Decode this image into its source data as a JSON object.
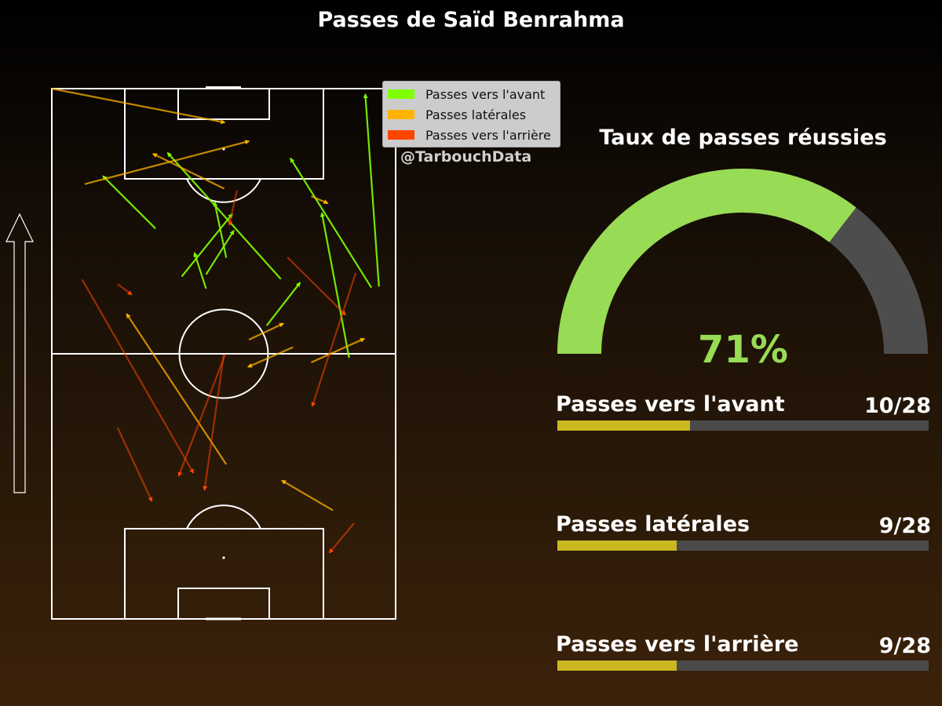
{
  "title": "Passes de Saïd Benrahma",
  "watermark": "@TarbouchData",
  "gauge": {
    "title": "Taux de passes réussies",
    "value_label": "71%",
    "value": 0.71,
    "fill_color": "#98db55",
    "track_color": "#4d4d4d"
  },
  "legend": [
    {
      "label": "Passes vers l'avant",
      "color": "#7fff00"
    },
    {
      "label": "Passes latérales",
      "color": "#ffb300"
    },
    {
      "label": "Passes vers l'arrière",
      "color": "#ff4500"
    }
  ],
  "stats": [
    {
      "label": "Passes vers l'avant",
      "count_label": "10/28",
      "value": 10,
      "total": 28
    },
    {
      "label": "Passes latérales",
      "count_label": "9/28",
      "value": 9,
      "total": 28
    },
    {
      "label": "Passes vers l'arrière",
      "count_label": "9/28",
      "value": 9,
      "total": 28
    }
  ],
  "bar_fill_color": "#cbb820",
  "bar_track_color": "#4a4a4a",
  "pitch_line_color": "#ffffff",
  "attack_direction": "up",
  "chart_data": {
    "type": "scatter",
    "description_units": "pitch coordinates: x = width 0-68 (left to right), y = length 0-105 (own goal at 0, attacking upward)",
    "xlim": [
      0,
      68
    ],
    "ylim": [
      0,
      105
    ],
    "series": [
      {
        "name": "Passes vers l'avant",
        "color": "#7fff00",
        "passes": [
          {
            "start": [
              64.7,
              65.8
            ],
            "end": [
              62.0,
              103.9
            ]
          },
          {
            "start": [
              58.8,
              51.7
            ],
            "end": [
              53.4,
              80.4
            ]
          },
          {
            "start": [
              63.2,
              65.6
            ],
            "end": [
              47.2,
              91.2
            ]
          },
          {
            "start": [
              45.3,
              67.3
            ],
            "end": [
              22.9,
              92.3
            ]
          },
          {
            "start": [
              20.5,
              77.3
            ],
            "end": [
              10.1,
              87.7
            ]
          },
          {
            "start": [
              30.5,
              68.2
            ],
            "end": [
              36.0,
              76.9
            ]
          },
          {
            "start": [
              25.7,
              67.8
            ],
            "end": [
              35.7,
              80.2
            ]
          },
          {
            "start": [
              34.5,
              71.5
            ],
            "end": [
              32.2,
              82.5
            ]
          },
          {
            "start": [
              30.5,
              65.4
            ],
            "end": [
              28.2,
              72.5
            ]
          },
          {
            "start": [
              42.5,
              58.1
            ],
            "end": [
              49.1,
              66.6
            ]
          }
        ]
      },
      {
        "name": "Passes latérales",
        "color": "#ffb300",
        "passes": [
          {
            "start": [
              0.0,
              105.0
            ],
            "end": [
              34.2,
              98.3
            ]
          },
          {
            "start": [
              6.5,
              86.1
            ],
            "end": [
              39.0,
              94.6
            ]
          },
          {
            "start": [
              51.3,
              83.7
            ],
            "end": [
              54.6,
              82.3
            ]
          },
          {
            "start": [
              51.3,
              50.8
            ],
            "end": [
              61.8,
              55.5
            ]
          },
          {
            "start": [
              39.0,
              55.3
            ],
            "end": [
              45.8,
              58.5
            ]
          },
          {
            "start": [
              47.7,
              53.8
            ],
            "end": [
              38.8,
              49.9
            ]
          },
          {
            "start": [
              34.1,
              85.2
            ],
            "end": [
              20.0,
              92.1
            ]
          },
          {
            "start": [
              34.5,
              30.6
            ],
            "end": [
              14.8,
              60.4
            ]
          },
          {
            "start": [
              55.6,
              21.5
            ],
            "end": [
              45.5,
              27.4
            ]
          }
        ]
      },
      {
        "name": "Passes vers l'arrière",
        "color": "#ff4500",
        "passes": [
          {
            "start": [
              6.0,
              67.2
            ],
            "end": [
              28.0,
              28.9
            ]
          },
          {
            "start": [
              13.0,
              66.3
            ],
            "end": [
              15.8,
              64.2
            ]
          },
          {
            "start": [
              46.6,
              71.6
            ],
            "end": [
              58.1,
              60.2
            ]
          },
          {
            "start": [
              60.1,
              68.5
            ],
            "end": [
              51.5,
              42.1
            ]
          },
          {
            "start": [
              34.3,
              52.4
            ],
            "end": [
              25.1,
              28.3
            ]
          },
          {
            "start": [
              34.0,
              52.3
            ],
            "end": [
              30.2,
              25.5
            ]
          },
          {
            "start": [
              13.0,
              37.9
            ],
            "end": [
              19.8,
              23.3
            ]
          },
          {
            "start": [
              59.8,
              19.0
            ],
            "end": [
              54.9,
              13.1
            ]
          },
          {
            "start": [
              36.6,
              84.8
            ],
            "end": [
              35.1,
              78.0
            ]
          }
        ]
      }
    ]
  }
}
